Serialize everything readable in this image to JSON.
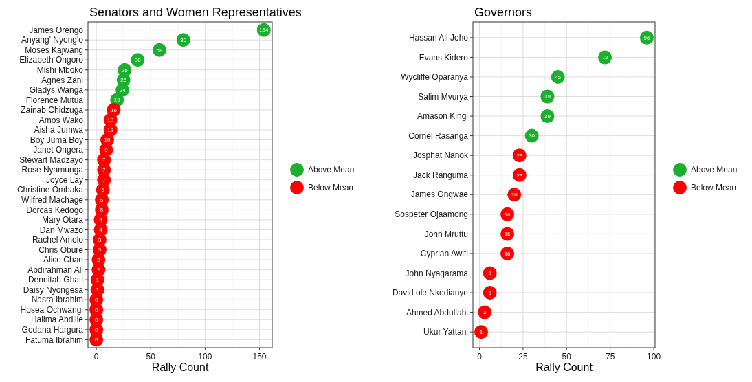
{
  "chart_data": [
    {
      "type": "scatter",
      "orientation": "horizontal",
      "title": "Senators and Women Representatives",
      "xlabel": "Rally Count",
      "categories": [
        "James Orengo",
        "Anyang' Nyong'o",
        "Moses Kajwang",
        "Elizabeth Ongoro",
        "Mishi Mboko",
        "Agnes Zani",
        "Gladys Wanga",
        "Florence Mutua",
        "Zainab Chidzuga",
        "Amos Wako",
        "Aisha Jumwa",
        "Boy Juma Boy",
        "Janet Ongera",
        "Stewart Madzayo",
        "Rose Nyamunga",
        "Joyce Lay",
        "Christine Ombaka",
        "Wilfred Machage",
        "Dorcas Kedogo",
        "Mary Otara",
        "Dan Mwazo",
        "Rachel Amolo",
        "Chris Obure",
        "Alice Chae",
        "Abdirahman Ali",
        "Dennitah Ghati",
        "Daisy Nyongesa",
        "Nasra Ibrahim",
        "Hosea Ochwangi",
        "Halima Abdille",
        "Godana Hargura",
        "Fatuma Ibrahim"
      ],
      "series": [
        {
          "name": "Above Mean",
          "color": "#1aaf2c",
          "values": [
            154,
            80,
            58,
            38,
            26,
            25,
            24,
            19,
            null,
            null,
            null,
            null,
            null,
            null,
            null,
            null,
            null,
            null,
            null,
            null,
            null,
            null,
            null,
            null,
            null,
            null,
            null,
            null,
            null,
            null,
            null,
            null
          ]
        },
        {
          "name": "Below Mean",
          "color": "#ff0000",
          "values": [
            null,
            null,
            null,
            null,
            null,
            null,
            null,
            null,
            16,
            13,
            13,
            10,
            9,
            7,
            7,
            7,
            6,
            5,
            5,
            4,
            4,
            3,
            3,
            2,
            2,
            1,
            1,
            0,
            0,
            0,
            0,
            0
          ]
        }
      ],
      "xlim": [
        -7.7,
        161.7
      ],
      "xticks": [
        0,
        50,
        100,
        150
      ],
      "grid": true,
      "legend": "right",
      "marker": "circle",
      "data_labels": true
    },
    {
      "type": "scatter",
      "orientation": "horizontal",
      "title": "Governors",
      "xlabel": "Rally Count",
      "categories": [
        "Hassan Ali Joho",
        "Evans Kidero",
        "Wycliffe Oparanya",
        "Salim Mvurya",
        "Amason Kingi",
        "Cornel Rasanga",
        "Josphat Nanok",
        "Jack Ranguma",
        "James Ongwae",
        "Sospeter Ojaamong",
        "John Mruttu",
        "Cyprian Awiti",
        "John Nyagarama",
        "David ole Nkedianye",
        "Ahmed Abdullahi",
        "Ukur Yattani"
      ],
      "series": [
        {
          "name": "Above Mean",
          "color": "#1aaf2c",
          "values": [
            96,
            72,
            45,
            39,
            39,
            30,
            null,
            null,
            null,
            null,
            null,
            null,
            null,
            null,
            null,
            null
          ]
        },
        {
          "name": "Below Mean",
          "color": "#ff0000",
          "values": [
            null,
            null,
            null,
            null,
            null,
            null,
            23,
            23,
            20,
            16,
            16,
            16,
            6,
            6,
            3,
            1
          ]
        }
      ],
      "xlim": [
        -3.75,
        100.75
      ],
      "xticks": [
        0,
        25,
        50,
        75,
        100
      ],
      "grid": true,
      "legend": "right",
      "marker": "circle",
      "data_labels": true
    }
  ]
}
